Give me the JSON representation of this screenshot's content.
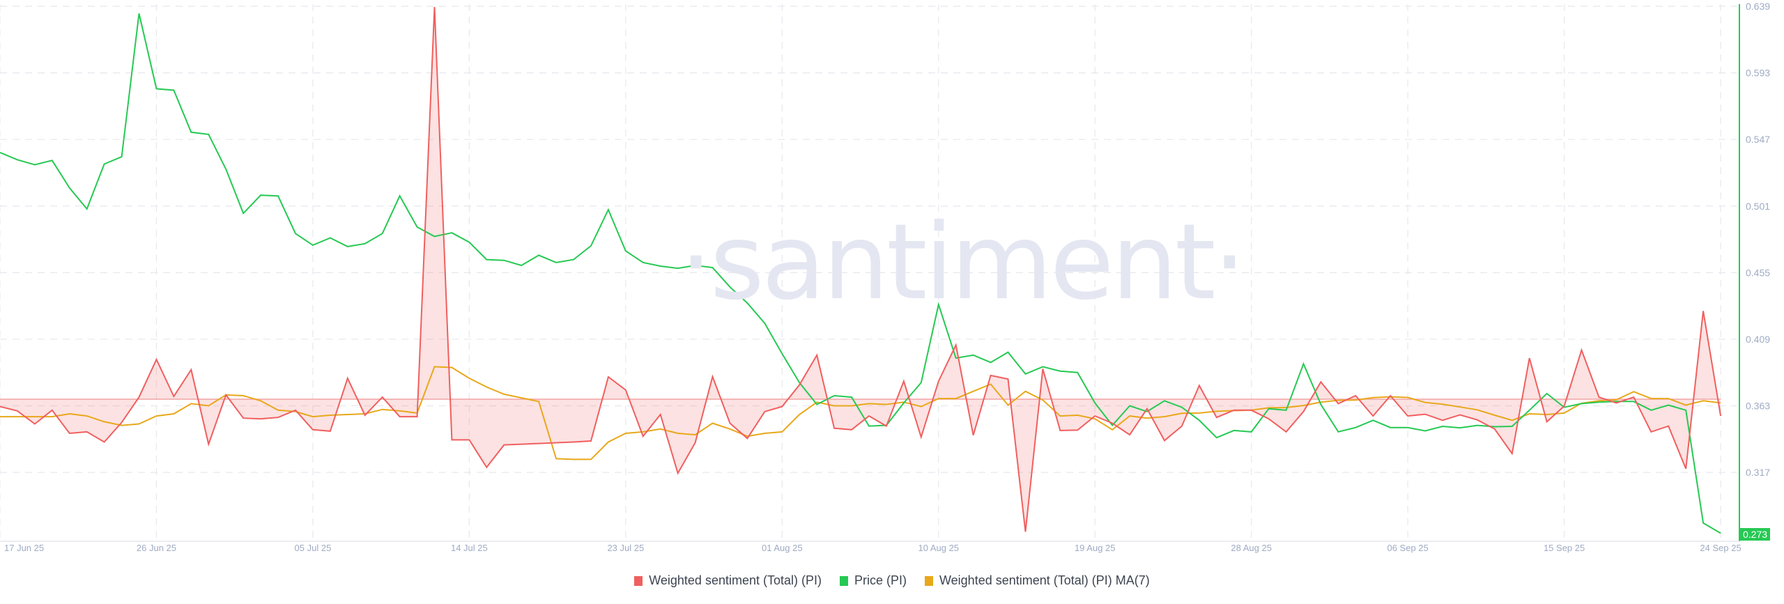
{
  "watermark": "·santiment·",
  "legend": [
    {
      "label": "Weighted sentiment (Total) (PI)",
      "color": "#f05f5f"
    },
    {
      "label": "Price (PI)",
      "color": "#26c953"
    },
    {
      "label": "Weighted sentiment (Total) (PI) MA(7)",
      "color": "#e8a81a"
    }
  ],
  "price_badge": "0.273",
  "chart_data": {
    "type": "line",
    "title": "",
    "xlabel": "",
    "ylabel": "",
    "x_ticks": [
      "17 Jun 25",
      "26 Jun 25",
      "05 Jul 25",
      "14 Jul 25",
      "23 Jul 25",
      "01 Aug 25",
      "10 Aug 25",
      "19 Aug 25",
      "28 Aug 25",
      "06 Sep 25",
      "15 Sep 25",
      "24 Sep 25"
    ],
    "y_ticks": [
      "0.639",
      "0.593",
      "0.547",
      "0.501",
      "0.455",
      "0.409",
      "0.363",
      "0.317"
    ],
    "ylim": [
      0.2704,
      0.639
    ],
    "grid": true,
    "legend_position": "bottom",
    "sentiment_baseline": 0.3676,
    "x_start_day_label": "17 Jun 25",
    "x_step": "1 day",
    "series": [
      {
        "name": "Weighted sentiment (Total) (PI)",
        "color": "#f05f5f",
        "fill_to_baseline": true,
        "values": [
          0.3625,
          0.3595,
          0.3505,
          0.36,
          0.344,
          0.345,
          0.338,
          0.3515,
          0.369,
          0.395,
          0.3695,
          0.388,
          0.3365,
          0.3705,
          0.3545,
          0.354,
          0.355,
          0.36,
          0.3465,
          0.3455,
          0.382,
          0.3565,
          0.369,
          0.3555,
          0.3555,
          0.6385,
          0.3395,
          0.3395,
          0.3205,
          0.336,
          0.3365,
          0.337,
          0.3375,
          0.338,
          0.3387,
          0.383,
          0.374,
          0.342,
          0.357,
          0.3165,
          0.3375,
          0.3832,
          0.351,
          0.3405,
          0.359,
          0.3625,
          0.3775,
          0.398,
          0.3475,
          0.3465,
          0.356,
          0.349,
          0.38,
          0.3414,
          0.38,
          0.405,
          0.3427,
          0.384,
          0.3815,
          0.276,
          0.3885,
          0.346,
          0.3462,
          0.356,
          0.351,
          0.343,
          0.361,
          0.339,
          0.349,
          0.377,
          0.355,
          0.36,
          0.36,
          0.354,
          0.345,
          0.359,
          0.3795,
          0.3645,
          0.37,
          0.356,
          0.37,
          0.356,
          0.3572,
          0.353,
          0.3567,
          0.3533,
          0.347,
          0.33,
          0.396,
          0.352,
          0.3628,
          0.4015,
          0.369,
          0.365,
          0.369,
          0.345,
          0.349,
          0.3195,
          0.4285,
          0.356
        ]
      },
      {
        "name": "Price (PI)",
        "color": "#26c953",
        "values": [
          0.538,
          0.533,
          0.5295,
          0.5325,
          0.5135,
          0.499,
          0.53,
          0.535,
          0.634,
          0.582,
          0.581,
          0.552,
          0.5505,
          0.5265,
          0.496,
          0.5085,
          0.508,
          0.482,
          0.474,
          0.479,
          0.473,
          0.475,
          0.482,
          0.508,
          0.4865,
          0.48,
          0.4825,
          0.476,
          0.464,
          0.4635,
          0.46,
          0.467,
          0.462,
          0.464,
          0.4735,
          0.4985,
          0.47,
          0.462,
          0.4595,
          0.458,
          0.46,
          0.4585,
          0.445,
          0.434,
          0.42,
          0.399,
          0.379,
          0.364,
          0.37,
          0.369,
          0.349,
          0.3495,
          0.365,
          0.379,
          0.433,
          0.396,
          0.398,
          0.393,
          0.4,
          0.385,
          0.39,
          0.387,
          0.386,
          0.365,
          0.3495,
          0.363,
          0.359,
          0.3665,
          0.362,
          0.353,
          0.341,
          0.346,
          0.345,
          0.361,
          0.36,
          0.392,
          0.364,
          0.345,
          0.348,
          0.353,
          0.348,
          0.348,
          0.3457,
          0.3488,
          0.3478,
          0.3495,
          0.3486,
          0.3488,
          0.36,
          0.3715,
          0.362,
          0.3645,
          0.3655,
          0.366,
          0.366,
          0.36,
          0.3635,
          0.36,
          0.282,
          0.275
        ]
      },
      {
        "name": "Weighted sentiment (Total) (PI) MA(7)",
        "color": "#e8a81a",
        "values": [
          0.3555,
          0.3555,
          0.3555,
          0.3555,
          0.3575,
          0.356,
          0.352,
          0.3495,
          0.3505,
          0.356,
          0.3575,
          0.3645,
          0.363,
          0.3705,
          0.37,
          0.3665,
          0.36,
          0.359,
          0.3555,
          0.3565,
          0.357,
          0.3575,
          0.3605,
          0.3595,
          0.358,
          0.39,
          0.3895,
          0.382,
          0.376,
          0.371,
          0.3685,
          0.366,
          0.3265,
          0.326,
          0.326,
          0.338,
          0.344,
          0.345,
          0.347,
          0.344,
          0.343,
          0.351,
          0.347,
          0.342,
          0.344,
          0.345,
          0.357,
          0.3655,
          0.363,
          0.363,
          0.3645,
          0.364,
          0.3655,
          0.3625,
          0.368,
          0.368,
          0.373,
          0.378,
          0.3635,
          0.373,
          0.367,
          0.356,
          0.3565,
          0.354,
          0.3465,
          0.356,
          0.3545,
          0.3555,
          0.3578,
          0.358,
          0.3592,
          0.3597,
          0.36,
          0.3616,
          0.3618,
          0.3632,
          0.3655,
          0.3668,
          0.367,
          0.3687,
          0.3692,
          0.3688,
          0.3653,
          0.3641,
          0.3622,
          0.3602,
          0.3565,
          0.353,
          0.3575,
          0.357,
          0.358,
          0.3648,
          0.3665,
          0.3672,
          0.3728,
          0.368,
          0.368,
          0.3635,
          0.3665,
          0.365
        ]
      }
    ]
  }
}
